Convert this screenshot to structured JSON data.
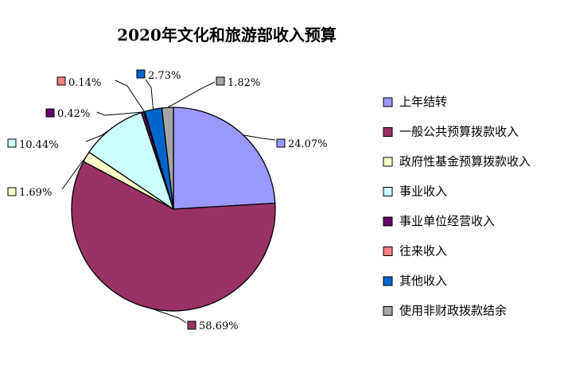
{
  "chart_data": {
    "type": "pie",
    "title": "2020年文化和旅游部收入预算",
    "legend_position": "right",
    "slices": [
      {
        "name": "上年结转",
        "value": 24.07,
        "label": "24.07%",
        "color": "#9999FF"
      },
      {
        "name": "一般公共预算拨款收入",
        "value": 58.69,
        "label": "58.69%",
        "color": "#993366"
      },
      {
        "name": "政府性基金预算拨款收入",
        "value": 1.69,
        "label": "1.69%",
        "color": "#FFFFCC"
      },
      {
        "name": "事业收入",
        "value": 10.44,
        "label": "10.44%",
        "color": "#CCFFFF"
      },
      {
        "name": "事业单位经营收入",
        "value": 0.42,
        "label": "0.42%",
        "color": "#660066"
      },
      {
        "name": "往来收入",
        "value": 0.14,
        "label": "0.14%",
        "color": "#FF8080"
      },
      {
        "name": "其他收入",
        "value": 2.73,
        "label": "2.73%",
        "color": "#0066CC"
      },
      {
        "name": "使用非财政拨款结余",
        "value": 1.82,
        "label": "1.82%",
        "color": "#A6A6A6"
      }
    ]
  }
}
